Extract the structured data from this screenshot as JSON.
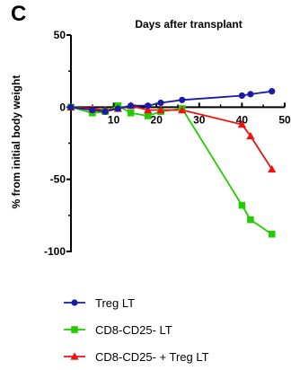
{
  "panel_label": "C",
  "chart_data": {
    "type": "line",
    "xlabel": "Days after transplant",
    "ylabel": "% from initial body weight",
    "xlim": [
      0,
      50
    ],
    "ylim": [
      -100,
      50
    ],
    "x_ticks": [
      "10",
      "20",
      "30",
      "40",
      "50"
    ],
    "y_ticks": [
      "50",
      "0",
      "-50",
      "-100"
    ],
    "x_tick_values": [
      10,
      20,
      30,
      40,
      50
    ],
    "y_tick_values": [
      50,
      0,
      -50,
      -100
    ],
    "legend_position": "bottom-left",
    "series": [
      {
        "name": "Treg LT",
        "color": "#1a1aa8",
        "marker": "circle",
        "x": [
          0,
          5,
          8,
          11,
          14,
          18,
          21,
          26,
          40,
          42,
          47
        ],
        "y": [
          0,
          -2,
          -3,
          -1,
          1,
          1,
          3,
          5,
          8,
          9,
          11
        ]
      },
      {
        "name": "CD8-CD25- LT",
        "color": "#22cc00",
        "marker": "square",
        "x": [
          0,
          5,
          8,
          11,
          14,
          18,
          21,
          26,
          40,
          42,
          47
        ],
        "y": [
          0,
          -4,
          -3,
          1,
          -4,
          -6,
          -3,
          -1,
          -68,
          -78,
          -88
        ]
      },
      {
        "name": "CD8-CD25- + Treg LT",
        "color": "#ee1111",
        "marker": "triangle",
        "x": [
          0,
          5,
          8,
          11,
          14,
          18,
          21,
          26,
          40,
          42,
          47
        ],
        "y": [
          0,
          -1,
          -2,
          -1,
          1,
          -2,
          -2,
          -2,
          -12,
          -20,
          -43
        ]
      }
    ]
  }
}
